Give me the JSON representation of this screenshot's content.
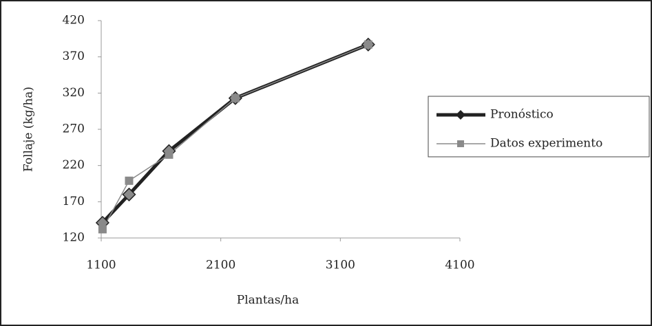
{
  "chart_data": {
    "type": "line",
    "x_label": "Plantas/ha",
    "y_label": "Follaje (kg/ha)",
    "series": [
      {
        "name": "Pronóstico",
        "color": "#222222",
        "marker": "diamond",
        "x": [
          1111,
          1333,
          1667,
          2222,
          3333
        ],
        "values": [
          141,
          180,
          240,
          313,
          387
        ]
      },
      {
        "name": "Datos experimento",
        "color": "#8a8a8a",
        "marker": "square",
        "x": [
          1111,
          1333,
          1667,
          2222,
          3333
        ],
        "values": [
          132,
          199,
          235,
          313,
          387
        ]
      }
    ],
    "xlim": [
      1100,
      4100
    ],
    "xticks": [
      1100,
      2100,
      3100,
      4100
    ],
    "ylim": [
      120,
      420
    ],
    "yticks": [
      120,
      170,
      220,
      270,
      320,
      370,
      420
    ],
    "legend": "right"
  }
}
